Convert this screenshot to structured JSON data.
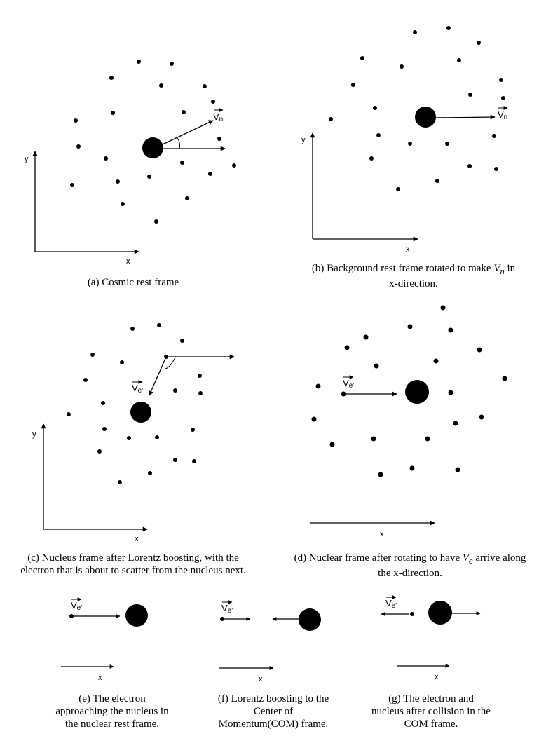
{
  "panels": {
    "a": {
      "caption": "(a) Cosmic rest frame",
      "x_label": "x",
      "y_label": "y",
      "velocity_label": "V",
      "velocity_subscript": "n"
    },
    "b": {
      "caption_pre": "(b) Background rest frame rotated to make ",
      "caption_var": "V",
      "caption_sub": "n",
      "caption_post": " in",
      "caption_line2": "x-direction.",
      "x_label": "x",
      "y_label": "y",
      "velocity_label": "V",
      "velocity_subscript": "n"
    },
    "c": {
      "caption_line1": "(c) Nucleus frame after Lorentz boosting, with the",
      "caption_line2": "electron that is about to scatter from the nucleus next.",
      "x_label": "x",
      "y_label": "y",
      "velocity_label": "V",
      "velocity_subscript": "e'"
    },
    "d": {
      "caption_pre": "(d) Nuclear frame after rotating to have ",
      "caption_var": "V",
      "caption_sub": "e",
      "caption_post": " arrive along",
      "caption_line2": "the x-direction.",
      "x_label": "x",
      "velocity_label": "V",
      "velocity_subscript": "e'"
    },
    "e": {
      "caption_line1": "(e) The electron",
      "caption_line2": "approaching the nucleus in",
      "caption_line3": "the nuclear rest frame.",
      "x_label": "x",
      "velocity_label": "V",
      "velocity_subscript": "e'"
    },
    "f": {
      "caption_line1": "(f) Lorentz boosting to the",
      "caption_line2": "Center of",
      "caption_line3": "Momentum(COM) frame.",
      "x_label": "x",
      "velocity_label": "V",
      "velocity_subscript": "e'"
    },
    "g": {
      "caption_line1": "(g) The electron and",
      "caption_line2": "nucleus after collision in the",
      "caption_line3": "COM frame.",
      "x_label": "x",
      "velocity_label": "V",
      "velocity_subscript": "e'"
    }
  },
  "colors": {
    "ink": "#000000",
    "background": "#ffffff"
  }
}
